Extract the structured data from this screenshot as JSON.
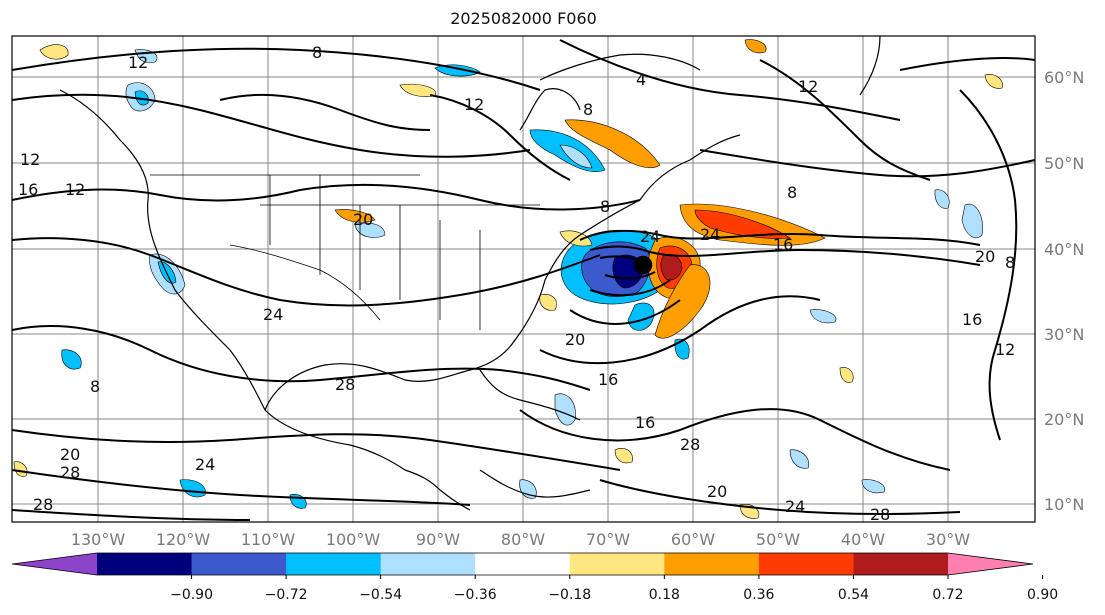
{
  "title": "2025082000 F060",
  "lon_labels": [
    "130°W",
    "120°W",
    "110°W",
    "100°W",
    "90°W",
    "80°W",
    "70°W",
    "60°W",
    "50°W",
    "40°W",
    "30°W"
  ],
  "lat_labels": [
    "60°N",
    "50°N",
    "40°N",
    "30°N",
    "20°N",
    "10°N"
  ],
  "colorbar": {
    "colors": [
      "#8e44c8",
      "#00007f",
      "#3c5acd",
      "#00bfff",
      "#b0e0ff",
      "#ffffff",
      "#ffe680",
      "#ff9e00",
      "#ff3c00",
      "#b01c1c",
      "#ff80b0"
    ],
    "tick_labels": [
      "−0.90",
      "−0.72",
      "−0.54",
      "−0.36",
      "−0.18",
      "0.18",
      "0.36",
      "0.54",
      "0.72",
      "0.90"
    ]
  },
  "contour_labels": [
    "12",
    "8",
    "12",
    "8",
    "12",
    "16",
    "12",
    "20",
    "24",
    "16",
    "20",
    "8",
    "24",
    "20",
    "16",
    "28",
    "20",
    "28",
    "24",
    "16",
    "28",
    "20",
    "24",
    "28",
    "28",
    "8",
    "8",
    "12",
    "16",
    "24",
    "4",
    "12",
    "8"
  ]
}
